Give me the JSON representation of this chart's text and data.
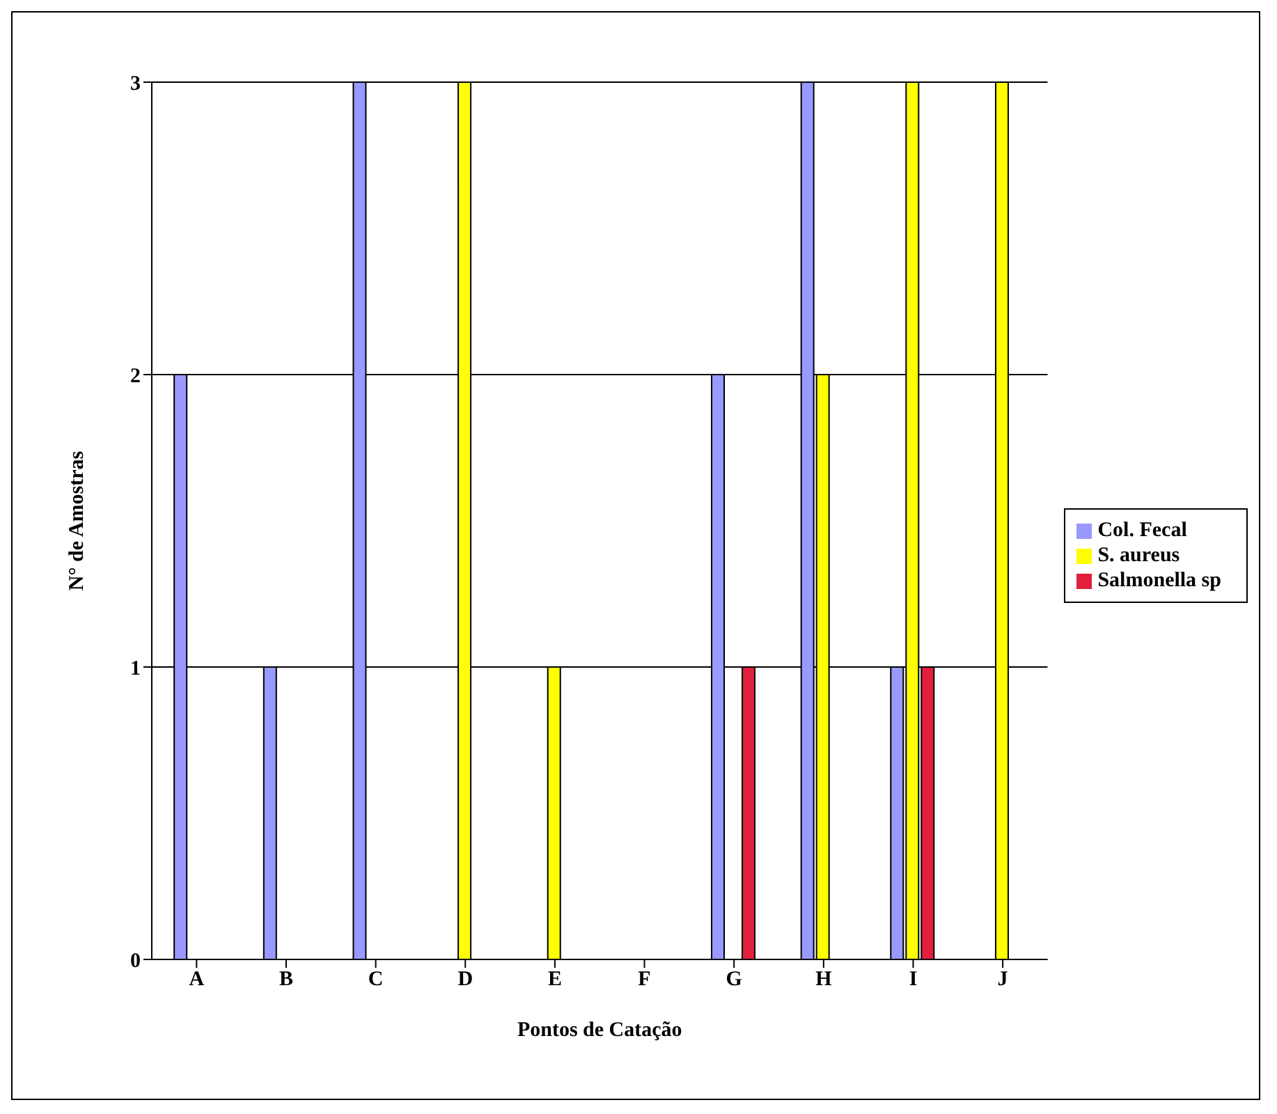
{
  "chart_data": {
    "type": "bar",
    "xlabel": "Pontos de Catação",
    "ylabel": "N° de Amostras",
    "categories": [
      "A",
      "B",
      "C",
      "D",
      "E",
      "F",
      "G",
      "H",
      "I",
      "J"
    ],
    "series": [
      {
        "name": "Col. Fecal",
        "color": "#9999ff",
        "values": [
          2,
          1,
          3,
          0,
          0,
          0,
          2,
          3,
          1,
          0
        ]
      },
      {
        "name": "S. aureus",
        "color": "#ffff00",
        "values": [
          0,
          0,
          0,
          3,
          1,
          0,
          0,
          2,
          3,
          3
        ]
      },
      {
        "name": "Salmonella sp",
        "color": "#e0203c",
        "values": [
          0,
          0,
          0,
          0,
          0,
          0,
          1,
          0,
          1,
          0
        ]
      }
    ],
    "ylim": [
      0,
      3
    ],
    "yticks": [
      0,
      1,
      2,
      3
    ],
    "grid": "y",
    "legend": "right"
  }
}
